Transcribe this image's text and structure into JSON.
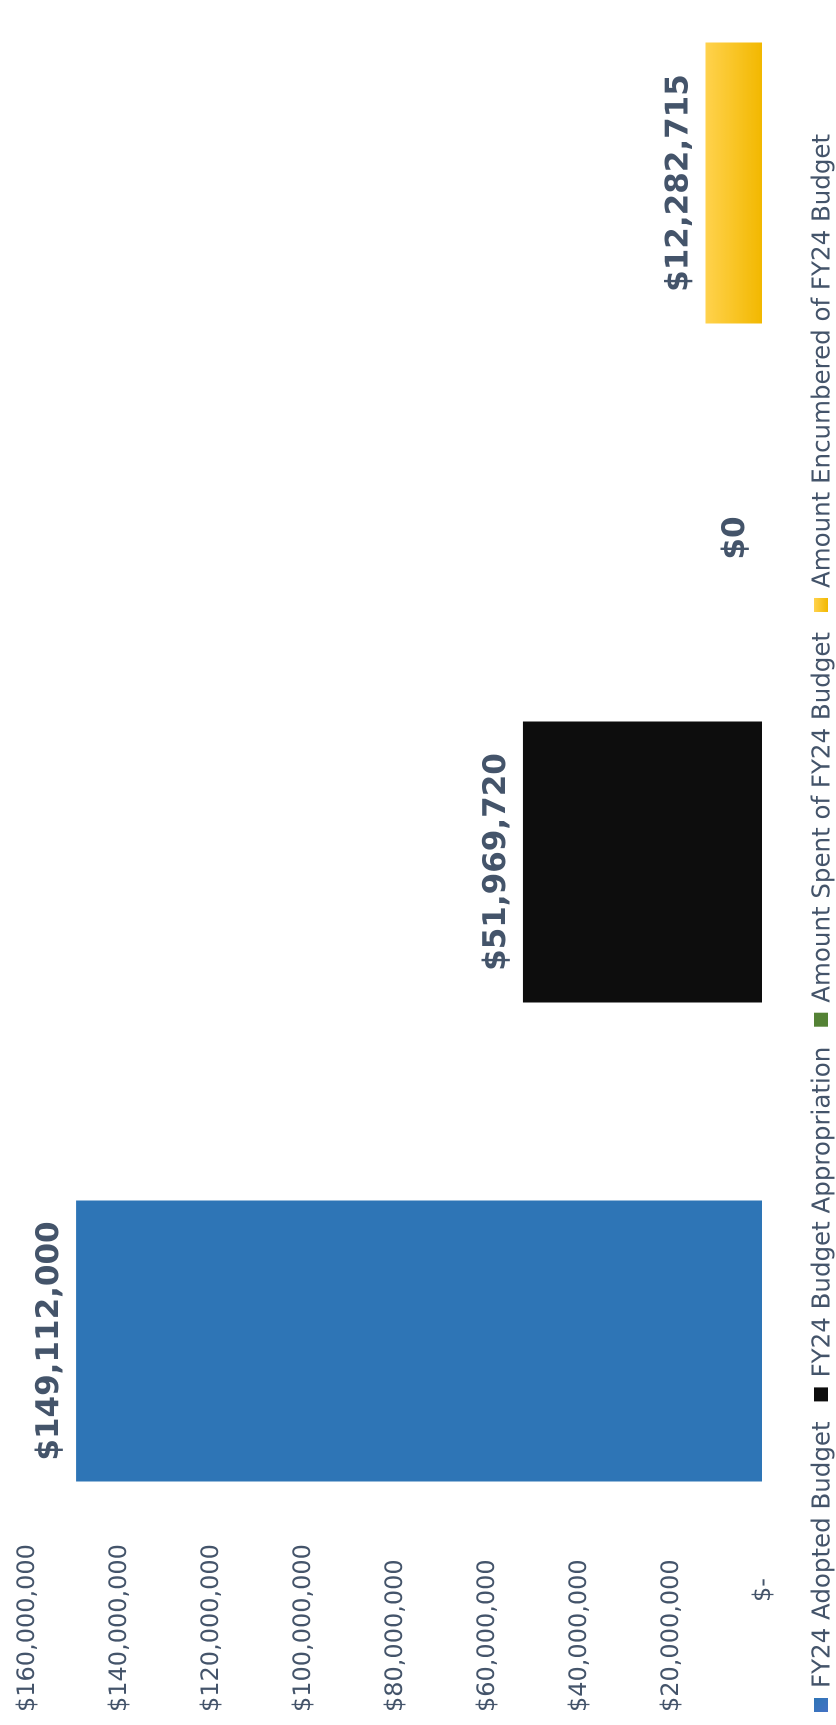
{
  "chart_data": {
    "type": "bar",
    "orientation": "rotated-90-ccw",
    "title": "",
    "xlabel": "",
    "ylabel": "",
    "ylim": [
      0,
      160000000
    ],
    "y_ticks": [
      0,
      20000000,
      40000000,
      60000000,
      80000000,
      100000000,
      120000000,
      140000000,
      160000000
    ],
    "y_tick_labels": [
      "$-",
      "$20,000,000",
      "$40,000,000",
      "$60,000,000",
      "$80,000,000",
      "$100,000,000",
      "$120,000,000",
      "$140,000,000",
      "$160,000,000"
    ],
    "grid": false,
    "legend_position": "bottom",
    "series": [
      {
        "name": "FY24 Adopted Budget",
        "value": 149112000,
        "label": "$149,112,000",
        "color": "#2E75B6"
      },
      {
        "name": "FY24 Budget Appropriation",
        "value": 51969720,
        "label": "$51,969,720",
        "color": "#0D0D0D"
      },
      {
        "name": "Amount Spent of FY24 Budget",
        "value": 0,
        "label": "$0",
        "color": "#548235"
      },
      {
        "name": "Amount Encumbered of FY24 Budget",
        "value": 12282715,
        "label": "$12,282,715",
        "color": "#FFC000"
      }
    ],
    "text_color": "#44546A"
  }
}
